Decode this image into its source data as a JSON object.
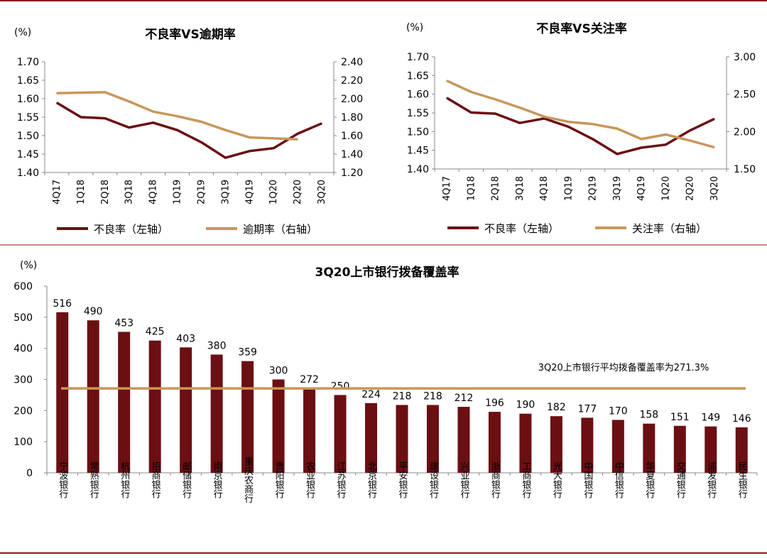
{
  "chart_data": [
    {
      "type": "line",
      "title": "不良率VS逾期率",
      "unit_label": "(%)",
      "categories": [
        "4Q17",
        "1Q18",
        "2Q18",
        "3Q18",
        "4Q18",
        "1Q19",
        "2Q19",
        "3Q19",
        "4Q19",
        "1Q20",
        "2Q20",
        "3Q20"
      ],
      "y_left": {
        "ylim": [
          1.4,
          1.7
        ],
        "ticks": [
          "1.40",
          "1.45",
          "1.50",
          "1.55",
          "1.60",
          "1.65",
          "1.70"
        ]
      },
      "y_right": {
        "ylim": [
          1.2,
          2.4
        ],
        "ticks": [
          "1.20",
          "1.40",
          "1.60",
          "1.80",
          "2.00",
          "2.20",
          "2.40"
        ]
      },
      "series": [
        {
          "name": "不良率（左轴）",
          "axis": "left",
          "color": "#6b0f13",
          "values": [
            1.589,
            1.55,
            1.547,
            1.522,
            1.535,
            1.515,
            1.482,
            1.44,
            1.458,
            1.466,
            1.505,
            1.533
          ]
        },
        {
          "name": "逾期率（右轴）",
          "axis": "right",
          "color": "#c8965a",
          "values": [
            2.06,
            null,
            2.07,
            1.97,
            1.86,
            1.81,
            1.75,
            1.66,
            1.58,
            1.57,
            1.56,
            null
          ]
        }
      ]
    },
    {
      "type": "line",
      "title": "不良率VS关注率",
      "unit_label": "(%)",
      "categories": [
        "4Q17",
        "1Q18",
        "2Q18",
        "3Q18",
        "4Q18",
        "1Q19",
        "2Q19",
        "3Q19",
        "4Q19",
        "1Q20",
        "2Q20",
        "3Q20"
      ],
      "y_left": {
        "ylim": [
          1.4,
          1.7
        ],
        "ticks": [
          "1.40",
          "1.45",
          "1.50",
          "1.55",
          "1.60",
          "1.65",
          "1.70"
        ]
      },
      "y_right": {
        "ylim": [
          1.5,
          3.0
        ],
        "ticks": [
          "1.50",
          "2.00",
          "2.50",
          "3.00"
        ]
      },
      "series": [
        {
          "name": "不良率（左轴）",
          "axis": "left",
          "color": "#6b0f13",
          "values": [
            1.59,
            1.551,
            1.548,
            1.523,
            1.535,
            1.513,
            1.48,
            1.44,
            1.457,
            1.465,
            1.503,
            1.534
          ]
        },
        {
          "name": "关注率（右轴）",
          "axis": "right",
          "color": "#c8965a",
          "values": [
            2.68,
            2.53,
            2.43,
            2.32,
            2.2,
            2.13,
            2.1,
            2.04,
            1.9,
            1.96,
            1.88,
            1.79
          ]
        }
      ]
    },
    {
      "type": "bar",
      "title": "3Q20上市银行拨备覆盖率",
      "unit_label": "(%)",
      "categories": [
        "宁波银行",
        "常熟银行",
        "杭州银行",
        "招商银行",
        "邮储银行",
        "南京银行",
        "重庆农商行",
        "贵阳银行",
        "农业银行",
        "江苏银行",
        "北京银行",
        "平安银行",
        "建设银行",
        "兴业银行",
        "浙商银行",
        "工商银行",
        "光大银行",
        "中国银行",
        "中信银行",
        "华夏银行",
        "交通银行",
        "浦发银行",
        "民生银行"
      ],
      "values": [
        516,
        490,
        453,
        425,
        403,
        380,
        359,
        300,
        272,
        250,
        224,
        218,
        218,
        212,
        196,
        190,
        182,
        177,
        170,
        158,
        151,
        149,
        146
      ],
      "ylim": [
        0,
        600
      ],
      "ticks": [
        "0",
        "100",
        "200",
        "300",
        "400",
        "500",
        "600"
      ],
      "bar_color": "#6b0f13",
      "average": {
        "value": 271.3,
        "label": "3Q20上市银行平均拨备覆盖率为271.3%",
        "color": "#c8965a"
      }
    }
  ]
}
